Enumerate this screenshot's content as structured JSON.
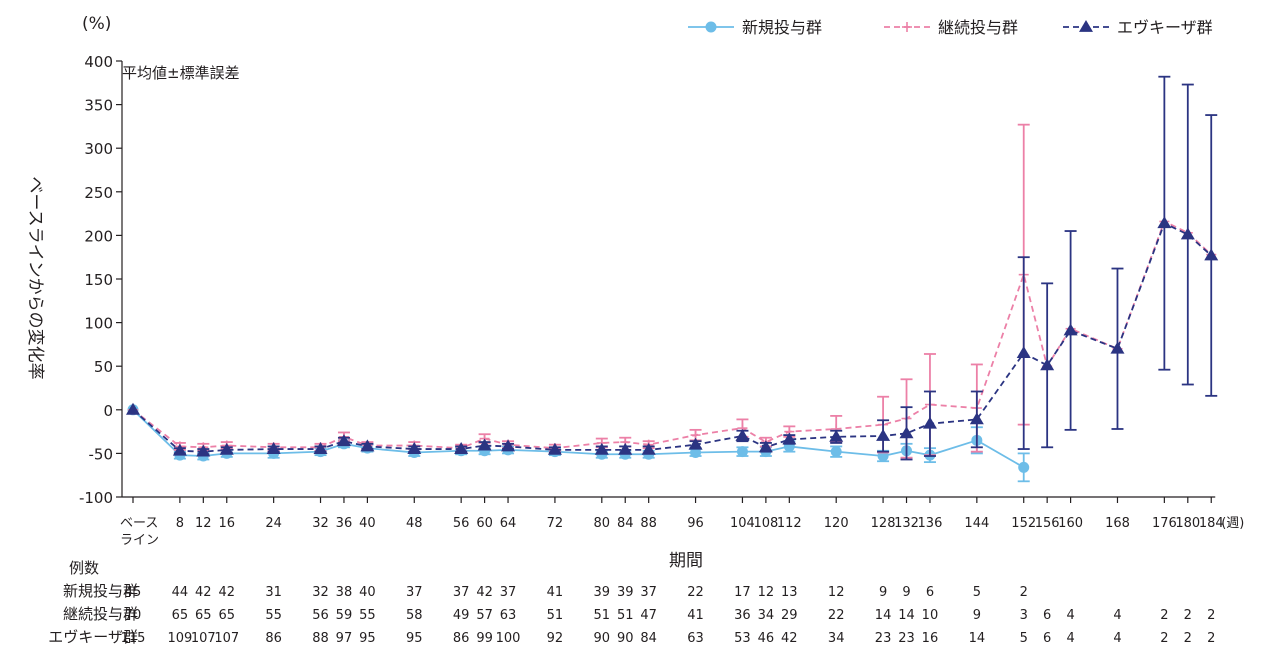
{
  "chart_data": {
    "type": "line",
    "unit_label": "(%)",
    "annotation": "平均値±標準誤差",
    "ylabel": "ベースラインからの変化率",
    "xlabel": "期間",
    "x_unit": "(週)",
    "ylim": [
      -100,
      400
    ],
    "yticks": [
      400,
      350,
      300,
      250,
      200,
      150,
      100,
      50,
      0,
      -50,
      -100
    ],
    "x_categories": [
      "ベース\nライン",
      "8",
      "12",
      "16",
      "24",
      "32",
      "36",
      "40",
      "48",
      "56",
      "60",
      "64",
      "72",
      "80",
      "84",
      "88",
      "96",
      "104",
      "108",
      "112",
      "120",
      "128",
      "132",
      "136",
      "144",
      "152",
      "156",
      "160",
      "168",
      "176",
      "180",
      "184"
    ],
    "x_weeks": [
      0,
      8,
      12,
      16,
      24,
      32,
      36,
      40,
      48,
      56,
      60,
      64,
      72,
      80,
      84,
      88,
      96,
      104,
      108,
      112,
      120,
      128,
      132,
      136,
      144,
      152,
      156,
      160,
      168,
      176,
      180,
      184
    ],
    "legend_position": "top-right",
    "series": [
      {
        "name": "新規投与群",
        "color": "#6dbde8",
        "style": "solid",
        "marker": "circle",
        "x": [
          0,
          8,
          12,
          16,
          24,
          32,
          36,
          40,
          48,
          56,
          60,
          64,
          72,
          80,
          84,
          88,
          96,
          104,
          108,
          112,
          120,
          128,
          132,
          136,
          144,
          152
        ],
        "y": [
          0,
          -52,
          -53,
          -50,
          -50,
          -48,
          -39,
          -44,
          -49,
          -47,
          -47,
          -46,
          -48,
          -51,
          -51,
          -51,
          -49,
          -48,
          -48,
          -42,
          -48,
          -53,
          -47,
          -52,
          -35,
          -66
        ],
        "err": [
          0,
          4,
          4,
          4,
          5,
          4,
          4,
          4,
          4,
          4,
          4,
          4,
          4,
          4,
          4,
          4,
          4,
          5,
          5,
          6,
          6,
          6,
          8,
          8,
          15,
          16
        ]
      },
      {
        "name": "継続投与群",
        "color": "#ec80a7",
        "style": "dashed",
        "marker": "plus",
        "x": [
          0,
          8,
          12,
          16,
          24,
          32,
          36,
          40,
          48,
          56,
          60,
          64,
          72,
          80,
          84,
          88,
          96,
          104,
          108,
          112,
          120,
          128,
          132,
          136,
          144,
          152,
          156,
          160,
          168,
          176,
          180,
          184
        ],
        "y": [
          0,
          -42,
          -43,
          -41,
          -43,
          -43,
          -31,
          -41,
          -41,
          -44,
          -33,
          -40,
          -44,
          -38,
          -37,
          -40,
          -29,
          -21,
          -37,
          -25,
          -22,
          -17,
          -10,
          6,
          2,
          155,
          50,
          93,
          70,
          216,
          203,
          178
        ],
        "err": [
          0,
          4,
          4,
          4,
          4,
          4,
          5,
          4,
          4,
          4,
          5,
          4,
          4,
          5,
          5,
          4,
          6,
          10,
          5,
          6,
          15,
          32,
          45,
          58,
          50,
          172,
          0,
          0,
          0,
          0,
          0,
          0
        ]
      },
      {
        "name": "エヴキーザ群",
        "color": "#2b3482",
        "style": "dashed",
        "marker": "triangle",
        "x": [
          0,
          8,
          12,
          16,
          24,
          32,
          36,
          40,
          48,
          56,
          60,
          64,
          72,
          80,
          84,
          88,
          96,
          104,
          108,
          112,
          120,
          128,
          132,
          136,
          144,
          152,
          156,
          160,
          168,
          176,
          180,
          184
        ],
        "y": [
          0,
          -47,
          -48,
          -46,
          -45,
          -45,
          -36,
          -42,
          -45,
          -45,
          -41,
          -42,
          -46,
          -46,
          -46,
          -46,
          -40,
          -30,
          -43,
          -34,
          -31,
          -30,
          -27,
          -16,
          -11,
          65,
          51,
          91,
          70,
          214,
          201,
          177
        ],
        "err": [
          0,
          3,
          3,
          3,
          3,
          3,
          4,
          3,
          3,
          3,
          4,
          3,
          3,
          4,
          4,
          4,
          4,
          6,
          5,
          5,
          7,
          18,
          30,
          37,
          32,
          110,
          94,
          114,
          92,
          168,
          172,
          161
        ]
      }
    ],
    "counts": {
      "title": "例数",
      "rows": [
        {
          "label": "新規投与群",
          "x": [
            0,
            8,
            12,
            16,
            24,
            32,
            36,
            40,
            48,
            56,
            60,
            64,
            72,
            80,
            84,
            88,
            96,
            104,
            108,
            112,
            120,
            128,
            132,
            136,
            144,
            152
          ],
          "values": [
            "45",
            "44",
            "42",
            "42",
            "31",
            "32",
            "38",
            "40",
            "37",
            "37",
            "42",
            "37",
            "41",
            "39",
            "39",
            "37",
            "22",
            "17",
            "12",
            "13",
            "12",
            "9",
            "9",
            "6",
            "5",
            "2"
          ]
        },
        {
          "label": "継続投与群",
          "x": [
            0,
            8,
            12,
            16,
            24,
            32,
            36,
            40,
            48,
            56,
            60,
            64,
            72,
            80,
            84,
            88,
            96,
            104,
            108,
            112,
            120,
            128,
            132,
            136,
            144,
            152,
            156,
            160,
            168,
            176,
            180,
            184
          ],
          "values": [
            "70",
            "65",
            "65",
            "65",
            "55",
            "56",
            "59",
            "55",
            "58",
            "49",
            "57",
            "63",
            "51",
            "51",
            "51",
            "47",
            "41",
            "36",
            "34",
            "29",
            "22",
            "14",
            "14",
            "10",
            "9",
            "3",
            "6",
            "4",
            "4",
            "2",
            "2",
            "2"
          ]
        },
        {
          "label": "エヴキーザ群",
          "x": [
            0,
            8,
            12,
            16,
            24,
            32,
            36,
            40,
            48,
            56,
            60,
            64,
            72,
            80,
            84,
            88,
            96,
            104,
            108,
            112,
            120,
            128,
            132,
            136,
            144,
            152,
            156,
            160,
            168,
            176,
            180,
            184
          ],
          "values": [
            "115",
            "109",
            "107",
            "107",
            "86",
            "88",
            "97",
            "95",
            "95",
            "86",
            "99",
            "100",
            "92",
            "90",
            "90",
            "84",
            "63",
            "53",
            "46",
            "42",
            "34",
            "23",
            "23",
            "16",
            "14",
            "5",
            "6",
            "4",
            "4",
            "2",
            "2",
            "2"
          ]
        }
      ]
    }
  }
}
